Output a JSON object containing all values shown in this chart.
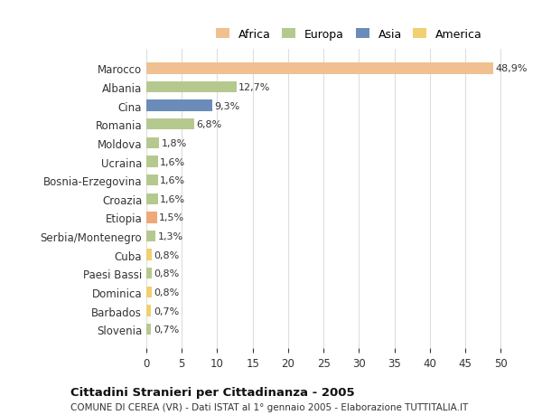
{
  "countries": [
    "Marocco",
    "Albania",
    "Cina",
    "Romania",
    "Moldova",
    "Ucraina",
    "Bosnia-Erzegovina",
    "Croazia",
    "Etiopia",
    "Serbia/Montenegro",
    "Cuba",
    "Paesi Bassi",
    "Dominica",
    "Barbados",
    "Slovenia"
  ],
  "values": [
    48.9,
    12.7,
    9.3,
    6.8,
    1.8,
    1.6,
    1.6,
    1.6,
    1.5,
    1.3,
    0.8,
    0.8,
    0.8,
    0.7,
    0.7
  ],
  "labels": [
    "48,9%",
    "12,7%",
    "9,3%",
    "6,8%",
    "1,8%",
    "1,6%",
    "1,6%",
    "1,6%",
    "1,5%",
    "1,3%",
    "0,8%",
    "0,8%",
    "0,8%",
    "0,7%",
    "0,7%"
  ],
  "colors": [
    "#f0c090",
    "#b5c98e",
    "#6b8cba",
    "#b5c98e",
    "#b5c98e",
    "#b5c98e",
    "#b5c98e",
    "#b5c98e",
    "#f0a878",
    "#b5c98e",
    "#f0d070",
    "#b5c98e",
    "#f0d070",
    "#f0d070",
    "#b5c98e"
  ],
  "legend_labels": [
    "Africa",
    "Europa",
    "Asia",
    "America"
  ],
  "legend_colors": [
    "#f0c090",
    "#b5c98e",
    "#6b8cba",
    "#f0d070"
  ],
  "title": "Cittadini Stranieri per Cittadinanza - 2005",
  "subtitle": "COMUNE DI CEREA (VR) - Dati ISTAT al 1° gennaio 2005 - Elaborazione TUTTITALIA.IT",
  "xlim": [
    0,
    52
  ],
  "xticks": [
    0,
    5,
    10,
    15,
    20,
    25,
    30,
    35,
    40,
    45,
    50
  ],
  "bg_color": "#ffffff",
  "grid_color": "#dddddd"
}
